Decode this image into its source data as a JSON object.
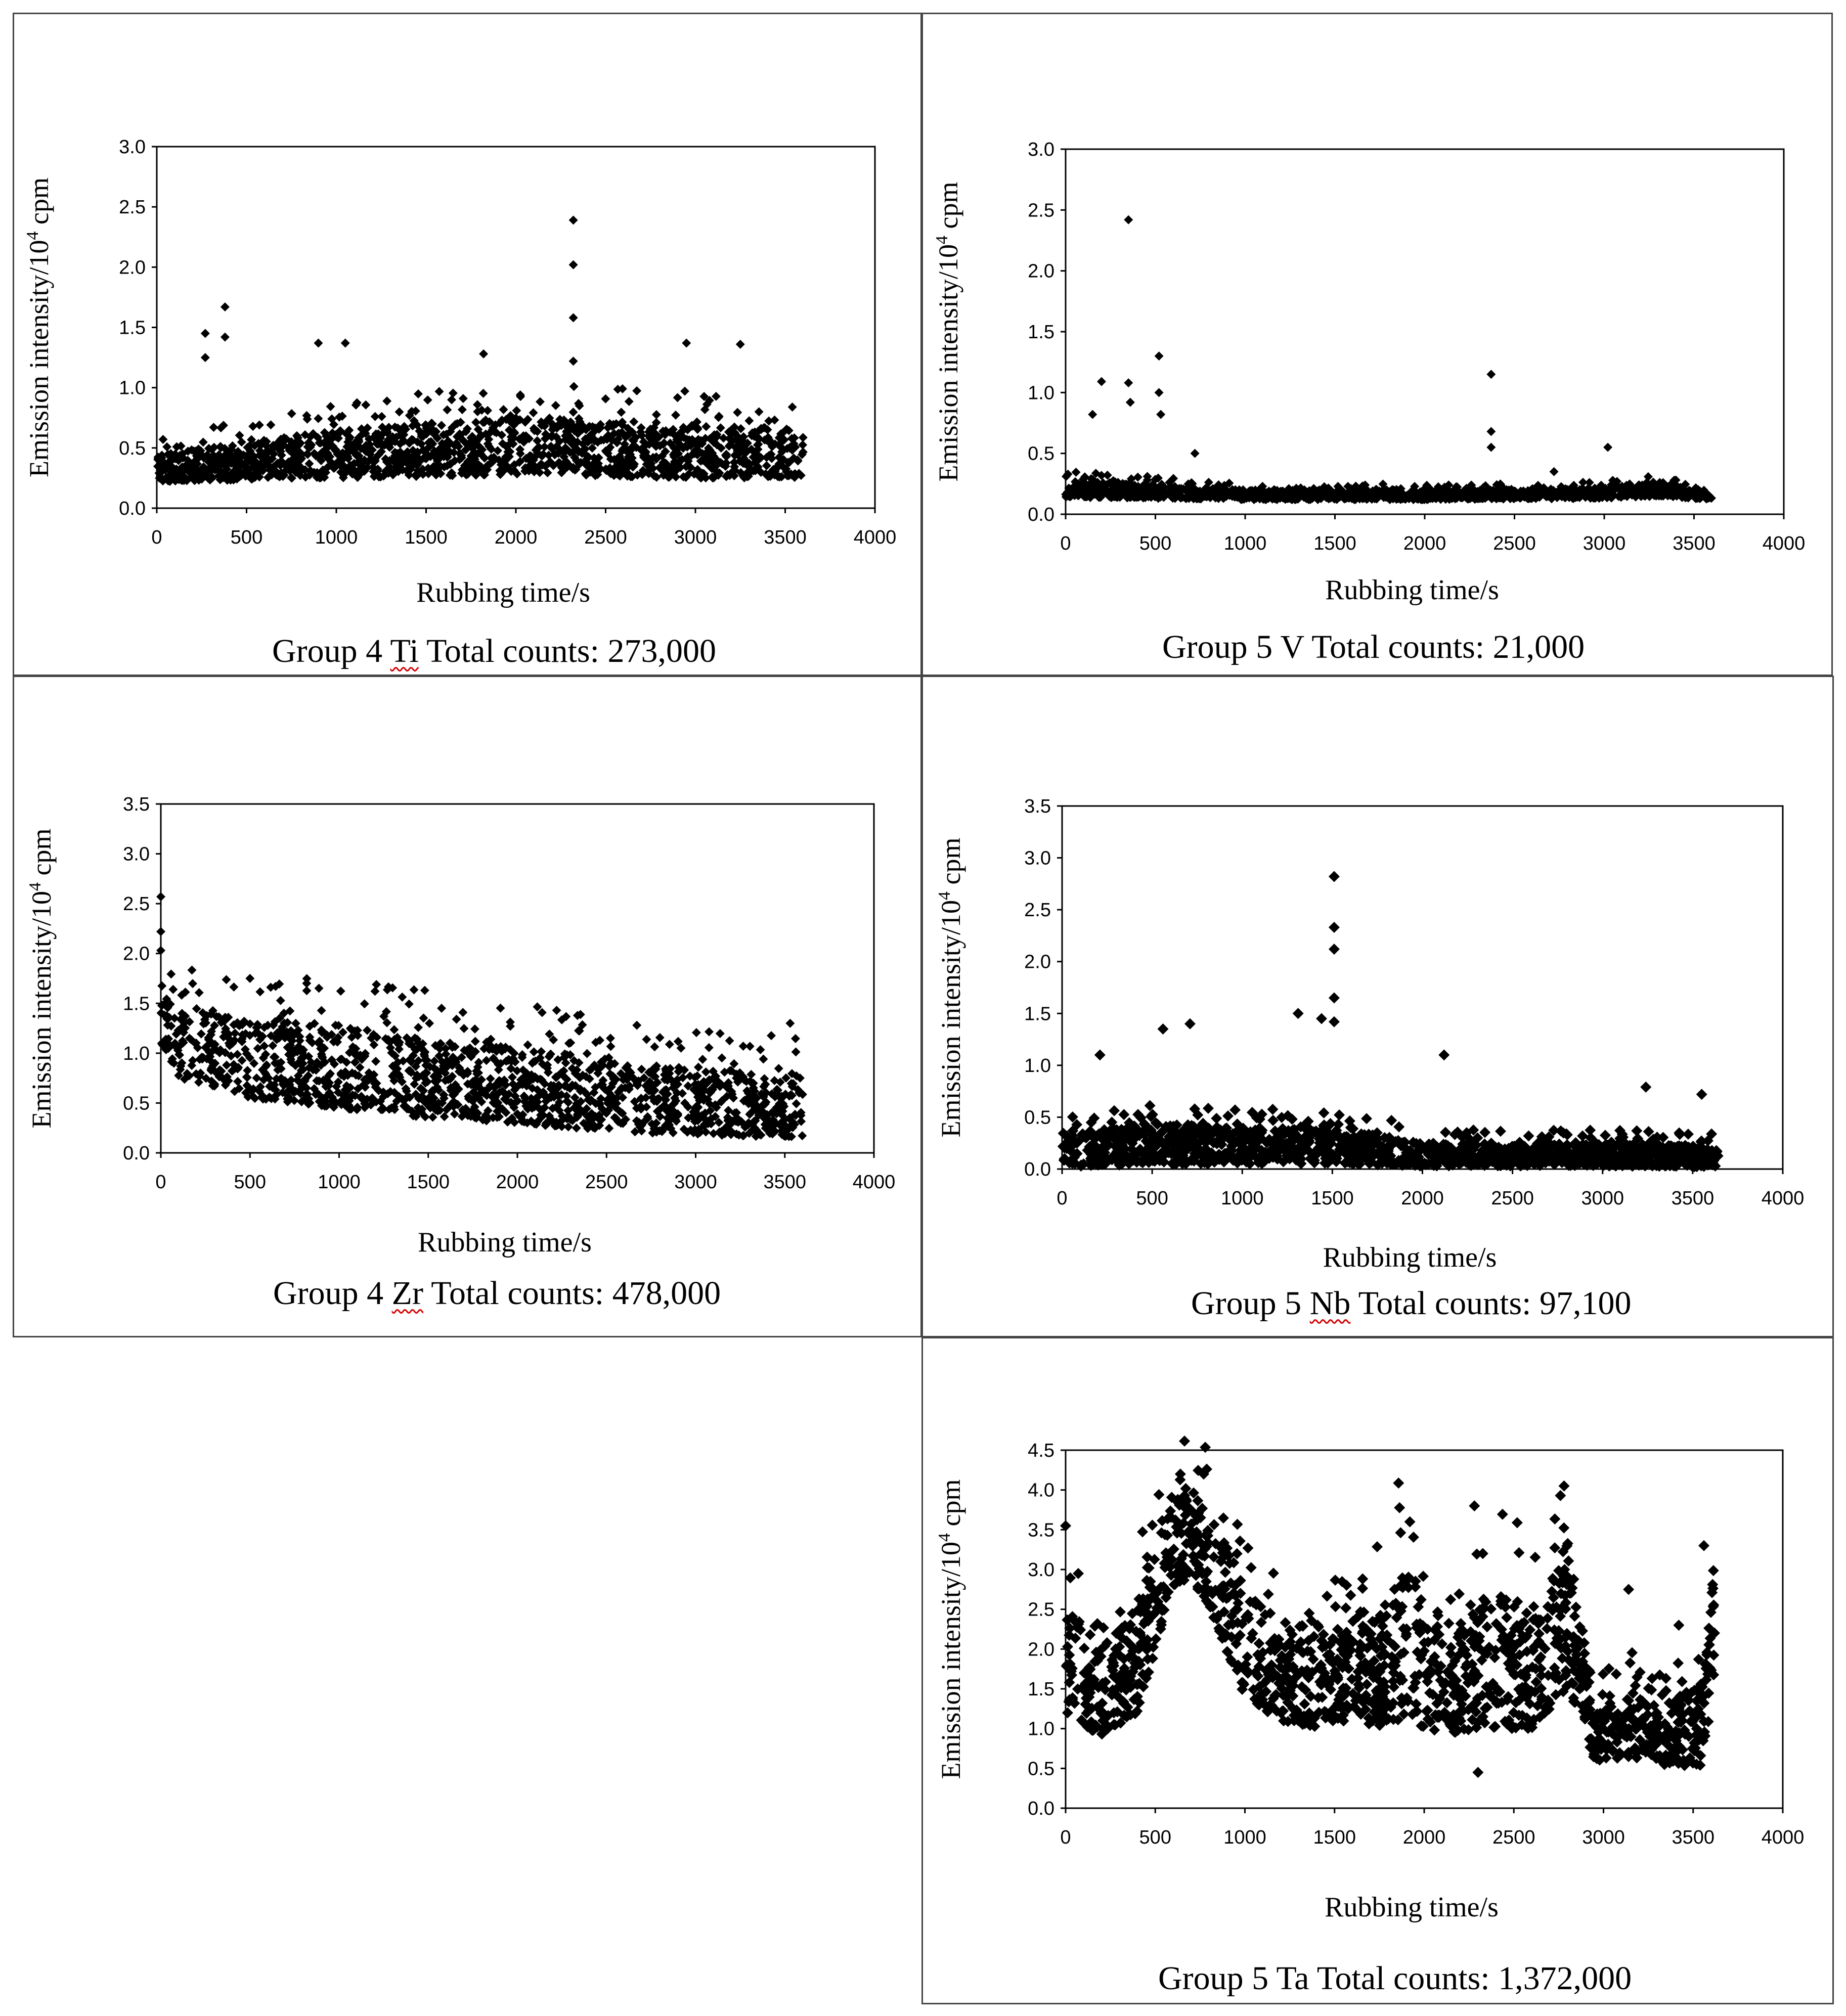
{
  "colors": {
    "marker": "#000000",
    "frame": "#000000",
    "panel_border": "#444444",
    "spell_underline": "#d40000"
  },
  "chart_data": [
    {
      "type": "scatter",
      "title": "Group 4 Ti Total counts: 273,000",
      "caption": {
        "group": "Group 4",
        "element": "Ti",
        "counts": "Total counts: 273,000"
      },
      "xlabel": "Rubbing time/s",
      "ylabel": {
        "main": "Emission intensity/10",
        "sup": "4",
        "unit": " cpm"
      },
      "xlim": [
        0,
        4000
      ],
      "ylim": [
        0,
        3.0
      ],
      "xticks": [
        0,
        500,
        1000,
        1500,
        2000,
        2500,
        3000,
        3500,
        4000
      ],
      "yticks": [
        "0.0",
        "0.5",
        "1.0",
        "1.5",
        "2.0",
        "2.5",
        "3.0"
      ],
      "points_summary": {
        "x_range": [
          0,
          3600
        ],
        "baseline_low": 0.15,
        "band": [
          [
            0,
            0.22,
            0.45
          ],
          [
            1000,
            0.25,
            0.65
          ],
          [
            2000,
            0.28,
            0.75
          ],
          [
            3000,
            0.25,
            0.7
          ],
          [
            3600,
            0.25,
            0.65
          ]
        ]
      },
      "outliers": [
        [
          270,
          1.45
        ],
        [
          270,
          1.25
        ],
        [
          380,
          1.67
        ],
        [
          380,
          1.42
        ],
        [
          900,
          1.37
        ],
        [
          1050,
          1.37
        ],
        [
          1820,
          1.28
        ],
        [
          2320,
          2.39
        ],
        [
          2320,
          2.02
        ],
        [
          2320,
          1.58
        ],
        [
          2320,
          1.22
        ],
        [
          2950,
          1.37
        ],
        [
          3250,
          1.36
        ]
      ]
    },
    {
      "type": "scatter",
      "title": "Group 5 V Total counts: 21,000",
      "caption": {
        "group": "Group 5",
        "element": "V",
        "counts": "Total counts: 21,000"
      },
      "xlabel": "Rubbing time/s",
      "ylabel": {
        "main": "Emission intensity/10",
        "sup": "4",
        "unit": " cpm"
      },
      "xlim": [
        0,
        4000
      ],
      "ylim": [
        0,
        3.0
      ],
      "xticks": [
        0,
        500,
        1000,
        1500,
        2000,
        2500,
        3000,
        3500,
        4000
      ],
      "yticks": [
        "0.0",
        "0.5",
        "1.0",
        "1.5",
        "2.0",
        "2.5",
        "3.0"
      ],
      "points_summary": {
        "x_range": [
          0,
          3600
        ],
        "baseline_low": 0.12,
        "band": [
          [
            0,
            0.14,
            0.28
          ],
          [
            1000,
            0.12,
            0.2
          ],
          [
            2000,
            0.12,
            0.2
          ],
          [
            3000,
            0.13,
            0.22
          ],
          [
            3300,
            0.15,
            0.27
          ],
          [
            3600,
            0.12,
            0.16
          ]
        ]
      },
      "outliers": [
        [
          200,
          1.09
        ],
        [
          150,
          0.82
        ],
        [
          350,
          2.42
        ],
        [
          350,
          1.08
        ],
        [
          360,
          0.92
        ],
        [
          520,
          1.3
        ],
        [
          520,
          1.0
        ],
        [
          530,
          0.82
        ],
        [
          720,
          0.5
        ],
        [
          2370,
          1.15
        ],
        [
          2370,
          0.68
        ],
        [
          2370,
          0.55
        ],
        [
          3020,
          0.55
        ],
        [
          2720,
          0.35
        ]
      ]
    },
    {
      "type": "scatter",
      "title": "Group 4 Zr Total counts: 478,000",
      "caption": {
        "group": "Group 4",
        "element": "Zr",
        "counts": "Total counts: 478,000"
      },
      "xlabel": "Rubbing time/s",
      "ylabel": {
        "main": "Emission intensity/10",
        "sup": "4",
        "unit": " cpm"
      },
      "xlim": [
        0,
        4000
      ],
      "ylim": [
        0,
        3.5
      ],
      "xticks": [
        0,
        500,
        1000,
        1500,
        2000,
        2500,
        3000,
        3500,
        4000
      ],
      "yticks": [
        "0.0",
        "0.5",
        "1.0",
        "1.5",
        "2.0",
        "2.5",
        "3.0",
        "3.5"
      ],
      "points_summary": {
        "x_range": [
          0,
          3600
        ],
        "band": [
          [
            0,
            1.1,
            1.6
          ],
          [
            100,
            0.75,
            1.45
          ],
          [
            500,
            0.55,
            1.35
          ],
          [
            1000,
            0.45,
            1.3
          ],
          [
            1500,
            0.35,
            1.15
          ],
          [
            2000,
            0.3,
            1.05
          ],
          [
            2500,
            0.22,
            0.95
          ],
          [
            3000,
            0.18,
            0.85
          ],
          [
            3600,
            0.15,
            0.8
          ]
        ]
      },
      "outliers": [
        [
          0,
          2.57
        ],
        [
          0,
          2.22
        ],
        [
          0,
          2.03
        ],
        [
          500,
          1.75
        ],
        [
          2220,
          1.43
        ],
        [
          3530,
          1.3
        ],
        [
          2670,
          1.28
        ]
      ]
    },
    {
      "type": "scatter",
      "title": "Group 5 Nb Total counts: 97,100",
      "caption": {
        "group": "Group 5",
        "element": "Nb",
        "counts": "Total counts: 97,100"
      },
      "xlabel": "Rubbing time/s",
      "ylabel": {
        "main": "Emission intensity/10",
        "sup": "4",
        "unit": " cpm"
      },
      "xlim": [
        0,
        4000
      ],
      "ylim": [
        0,
        3.5
      ],
      "xticks": [
        0,
        500,
        1000,
        1500,
        2000,
        2500,
        3000,
        3500,
        4000
      ],
      "yticks": [
        "0.0",
        "0.5",
        "1.0",
        "1.5",
        "2.0",
        "2.5",
        "3.0",
        "3.5"
      ],
      "points_summary": {
        "x_range": [
          0,
          3640
        ],
        "band": [
          [
            0,
            0.02,
            0.35
          ],
          [
            500,
            0.05,
            0.45
          ],
          [
            1000,
            0.05,
            0.4
          ],
          [
            1500,
            0.05,
            0.45
          ],
          [
            2000,
            0.03,
            0.25
          ],
          [
            2500,
            0.03,
            0.25
          ],
          [
            3000,
            0.03,
            0.25
          ],
          [
            3640,
            0.02,
            0.22
          ]
        ]
      },
      "outliers": [
        [
          1510,
          2.82
        ],
        [
          1510,
          2.33
        ],
        [
          1510,
          2.12
        ],
        [
          1510,
          1.65
        ],
        [
          1510,
          1.42
        ],
        [
          1440,
          1.45
        ],
        [
          1310,
          1.5
        ],
        [
          560,
          1.35
        ],
        [
          710,
          1.4
        ],
        [
          2120,
          1.1
        ],
        [
          210,
          1.1
        ],
        [
          3240,
          0.79
        ],
        [
          3550,
          0.72
        ]
      ]
    },
    {
      "type": "scatter",
      "title": "Group 5 Ta Total counts: 1,372,000",
      "caption": {
        "group": "Group 5",
        "element": "Ta",
        "counts": "Total counts: 1,372,000"
      },
      "xlabel": "Rubbing time/s",
      "ylabel": {
        "main": "Emission intensity/10",
        "sup": "4",
        "unit": " cpm"
      },
      "xlim": [
        0,
        4000
      ],
      "ylim": [
        0,
        4.5
      ],
      "xticks": [
        0,
        500,
        1000,
        1500,
        2000,
        2500,
        3000,
        3500,
        4000
      ],
      "yticks": [
        "0.0",
        "0.5",
        "1.0",
        "1.5",
        "2.0",
        "2.5",
        "3.0",
        "3.5",
        "4.0",
        "4.5"
      ],
      "points_summary": {
        "x_range": [
          0,
          3620
        ],
        "band": [
          [
            0,
            1.2,
            2.6
          ],
          [
            200,
            0.9,
            2.0
          ],
          [
            400,
            1.2,
            2.6
          ],
          [
            600,
            2.8,
            3.9
          ],
          [
            700,
            2.9,
            4.1
          ],
          [
            800,
            2.5,
            3.8
          ],
          [
            1000,
            1.4,
            2.8
          ],
          [
            1200,
            1.1,
            2.2
          ],
          [
            1400,
            1.0,
            2.4
          ],
          [
            1600,
            1.1,
            2.2
          ],
          [
            1800,
            1.0,
            2.6
          ],
          [
            1900,
            1.2,
            3.3
          ],
          [
            2000,
            1.0,
            2.5
          ],
          [
            2200,
            0.9,
            2.3
          ],
          [
            2400,
            1.0,
            2.8
          ],
          [
            2600,
            1.0,
            2.5
          ],
          [
            2800,
            1.5,
            3.4
          ],
          [
            2950,
            0.6,
            1.3
          ],
          [
            3200,
            0.6,
            1.5
          ],
          [
            3400,
            0.5,
            1.4
          ],
          [
            3560,
            0.5,
            1.6
          ],
          [
            3620,
            1.6,
            3.2
          ]
        ]
      },
      "outliers": [
        [
          640,
          4.2
        ],
        [
          770,
          4.2
        ],
        [
          2780,
          4.05
        ],
        [
          2280,
          3.8
        ],
        [
          0,
          3.55
        ],
        [
          3560,
          3.3
        ],
        [
          1920,
          3.6
        ],
        [
          3140,
          2.75
        ],
        [
          3420,
          2.3
        ],
        [
          2300,
          0.45
        ]
      ]
    }
  ]
}
